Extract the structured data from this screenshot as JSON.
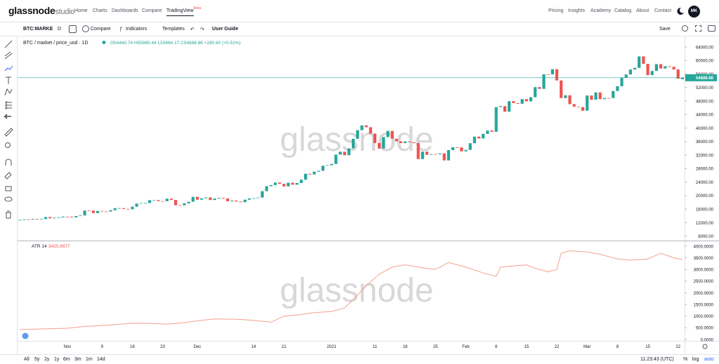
{
  "header": {
    "logo": "glassnode",
    "logo_suffix": "studio",
    "nav": [
      "Home",
      "Charts",
      "Dashboards",
      "Compare",
      "TradingView"
    ],
    "beta": "Beta",
    "right_nav": [
      "Pricing",
      "Insights",
      "Academy",
      "Catalog",
      "About",
      "Contact"
    ],
    "avatar": "MK"
  },
  "toolbar": {
    "symbol": "BTC:MARKE",
    "interval": "D",
    "buttons": [
      "Compare",
      "Indicators",
      "Templates"
    ],
    "guide": "User Guide",
    "save": "Save"
  },
  "bottom_bar": {
    "ranges": [
      "All",
      "5y",
      "2y",
      "1y",
      "6m",
      "3m",
      "1m",
      "14d"
    ],
    "time": "11:23:43 (UTC)",
    "options": [
      "%",
      "log",
      "auto"
    ]
  },
  "watermark": "glassnode",
  "chart_data": [
    {
      "type": "candlestick",
      "title": "BTC / market / price_usd · 1D",
      "ohlc_text": "O54440.74 H55985.44 L53484.17 C54888.86 +280.60 (+0.51%)",
      "up_color": "#26a69a",
      "down_color": "#ef5350",
      "xlim": [
        -0.5,
        153.5
      ],
      "xticks": [
        {
          "value": 11,
          "label": "Nov"
        },
        {
          "value": 19,
          "label": "9"
        },
        {
          "value": 26,
          "label": "16"
        },
        {
          "value": 33,
          "label": "23"
        },
        {
          "value": 41,
          "label": "Dec"
        },
        {
          "value": 54,
          "label": "14"
        },
        {
          "value": 61,
          "label": "21"
        },
        {
          "value": 72,
          "label": "2021"
        },
        {
          "value": 82,
          "label": "11"
        },
        {
          "value": 89,
          "label": "18"
        },
        {
          "value": 96,
          "label": "25"
        },
        {
          "value": 103,
          "label": "Feb"
        },
        {
          "value": 110,
          "label": "8"
        },
        {
          "value": 117,
          "label": "15"
        },
        {
          "value": 124,
          "label": "22"
        },
        {
          "value": 131,
          "label": "Mar"
        },
        {
          "value": 138,
          "label": "8"
        },
        {
          "value": 145,
          "label": "15"
        },
        {
          "value": 152,
          "label": "22"
        }
      ],
      "ylim": [
        6700,
        66900
      ],
      "yticks": [
        {
          "value": 8000,
          "label": "8000.00"
        },
        {
          "value": 12000,
          "label": "12000.00"
        },
        {
          "value": 16000,
          "label": "16000.00"
        },
        {
          "value": 20000,
          "label": "20000.00"
        },
        {
          "value": 24000,
          "label": "24000.00"
        },
        {
          "value": 28000,
          "label": "28000.00"
        },
        {
          "value": 32000,
          "label": "32000.00"
        },
        {
          "value": 36000,
          "label": "36000.00"
        },
        {
          "value": 40000,
          "label": "40000.00"
        },
        {
          "value": 44000,
          "label": "44000.00"
        },
        {
          "value": 48000,
          "label": "48000.00"
        },
        {
          "value": 52000,
          "label": "52000.00"
        },
        {
          "value": 56000,
          "label": "56000.00"
        },
        {
          "value": 60000,
          "label": "60000.00"
        },
        {
          "value": 64000,
          "label": "64000.00"
        }
      ],
      "open": [
        12700,
        12800,
        12970,
        12930,
        13120,
        13030,
        13070,
        13650,
        13270,
        13460,
        13560,
        13800,
        13760,
        13550,
        13950,
        14130,
        15580,
        15570,
        14830,
        15480,
        15330,
        15300,
        15700,
        16280,
        16310,
        16070,
        15960,
        16720,
        17650,
        17800,
        17820,
        18650,
        18680,
        18370,
        18360,
        19100,
        18730,
        17150,
        17140,
        17720,
        18180,
        19630,
        18800,
        19200,
        19450,
        18700,
        19150,
        19360,
        19170,
        18320,
        18550,
        18260,
        18060,
        18800,
        19170,
        19270,
        19430,
        21320,
        22800,
        23130,
        23870,
        23480,
        22740,
        23820,
        23240,
        23730,
        24710,
        26490,
        26280,
        27080,
        27360,
        28840,
        29000,
        29380,
        32130,
        33000,
        31970,
        33990,
        36820,
        39370,
        40800,
        40250,
        38350,
        35570,
        33920,
        37320,
        39150,
        36830,
        36070,
        35550,
        36030,
        35790,
        35550,
        30820,
        33010,
        32100,
        32290,
        32250,
        32510,
        30430,
        33470,
        34320,
        34270,
        33110,
        33540,
        35510,
        37470,
        36930,
        38290,
        39260,
        38900,
        46200,
        46480,
        44840,
        47970,
        47400,
        47190,
        48580,
        47910,
        49130,
        52120,
        51600,
        55920,
        55890,
        57410,
        54090,
        48890,
        49700,
        47090,
        46340,
        46190,
        45140,
        49630,
        48380,
        50540,
        48560,
        48910,
        48880,
        50970,
        52380,
        54880,
        55860,
        57330,
        57810,
        61200,
        59000,
        55660,
        56900,
        58910,
        57640,
        58300,
        58100,
        57350,
        54440.74
      ],
      "close": [
        12800,
        12970,
        12930,
        13120,
        13030,
        13070,
        13650,
        13270,
        13460,
        13560,
        13800,
        13760,
        13550,
        13950,
        14130,
        15580,
        15570,
        14830,
        15480,
        15330,
        15300,
        15700,
        16280,
        16310,
        16070,
        15960,
        16720,
        17650,
        17800,
        17820,
        18650,
        18680,
        18370,
        18360,
        19100,
        18730,
        17150,
        17140,
        17720,
        18180,
        19630,
        18800,
        19200,
        19450,
        18700,
        19150,
        19360,
        19170,
        18320,
        18550,
        18260,
        18060,
        18800,
        19170,
        19270,
        19430,
        21320,
        22800,
        23130,
        23870,
        23480,
        22740,
        23820,
        23240,
        23730,
        24710,
        26490,
        26280,
        27080,
        27360,
        28840,
        29000,
        29380,
        32130,
        33000,
        31970,
        33990,
        36820,
        39370,
        40800,
        40250,
        38350,
        35570,
        33920,
        37320,
        39150,
        36830,
        36070,
        35550,
        36030,
        35790,
        35550,
        30820,
        33010,
        32100,
        32290,
        32250,
        32510,
        30430,
        33470,
        34320,
        34270,
        33110,
        33540,
        35510,
        37470,
        36930,
        38290,
        39260,
        38900,
        46200,
        46480,
        44840,
        47970,
        47400,
        47190,
        48580,
        47910,
        49130,
        52120,
        51600,
        55920,
        55890,
        57410,
        54090,
        48890,
        49700,
        47090,
        46340,
        46190,
        45140,
        49630,
        48380,
        50540,
        48560,
        48910,
        48880,
        50970,
        52380,
        54880,
        55860,
        57330,
        57810,
        61200,
        59000,
        55660,
        56900,
        58910,
        57640,
        58300,
        58100,
        57350,
        54608.26,
        54888.86
      ]
    },
    {
      "type": "line",
      "title": "ATR 14",
      "color": "#f4a08c",
      "x": [
        0,
        5,
        11,
        15,
        19,
        23,
        26,
        30,
        34,
        38,
        41,
        45,
        50,
        54,
        58,
        61,
        64,
        68,
        72,
        75,
        78,
        80,
        83,
        86,
        89,
        92,
        96,
        99,
        103,
        107,
        110,
        111,
        114,
        117,
        119,
        122,
        124,
        125,
        127,
        131,
        134,
        138,
        141,
        145,
        148,
        151,
        153
      ],
      "values": [
        420,
        450,
        480,
        560,
        600,
        650,
        700,
        690,
        660,
        720,
        800,
        880,
        870,
        820,
        740,
        1000,
        1050,
        1150,
        1200,
        1350,
        1900,
        2300,
        2800,
        3100,
        3200,
        3100,
        3000,
        3300,
        3100,
        2850,
        2700,
        3100,
        3150,
        3200,
        3050,
        2900,
        3000,
        3700,
        3800,
        3750,
        3650,
        3450,
        3400,
        3450,
        3700,
        3500,
        3425.8977
      ],
      "ylim": [
        -60,
        4180
      ],
      "yticks": [
        {
          "value": 0,
          "label": "0.0000"
        },
        {
          "value": 500,
          "label": "500.0000"
        },
        {
          "value": 1000,
          "label": "1000.0000"
        },
        {
          "value": 1500,
          "label": "1500.0000"
        },
        {
          "value": 2000,
          "label": "2000.0000"
        },
        {
          "value": 2500,
          "label": "2500.0000"
        },
        {
          "value": 3000,
          "label": "3000.0000"
        },
        {
          "value": 3500,
          "label": "3500.0000"
        },
        {
          "value": 4000,
          "label": "4000.0000"
        }
      ]
    }
  ]
}
